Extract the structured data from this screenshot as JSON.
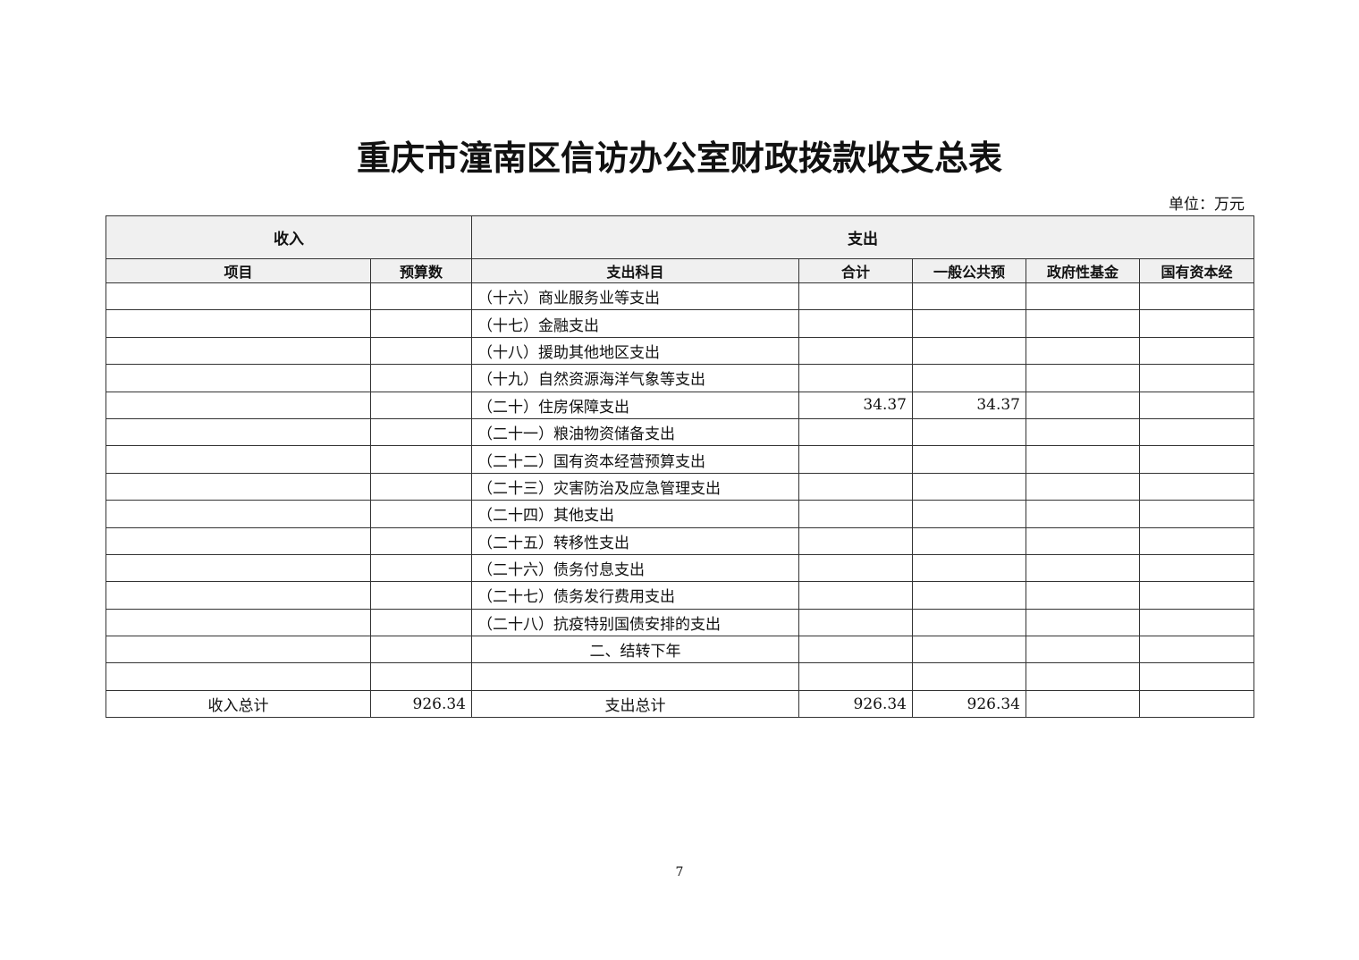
{
  "title": "重庆市潼南区信访办公室财政拨款收支总表",
  "unit": "单位：万元",
  "header": {
    "income": "收入",
    "expense": "支出",
    "columns": [
      "项目",
      "预算数",
      "支出科目",
      "合计",
      "一般公共预",
      "政府性基金",
      "国有资本经"
    ]
  },
  "rows": [
    [
      "",
      "",
      "（十六）商业服务业等支出",
      "",
      "",
      "",
      ""
    ],
    [
      "",
      "",
      "（十七）金融支出",
      "",
      "",
      "",
      ""
    ],
    [
      "",
      "",
      "（十八）援助其他地区支出",
      "",
      "",
      "",
      ""
    ],
    [
      "",
      "",
      "（十九）自然资源海洋气象等支出",
      "",
      "",
      "",
      ""
    ],
    [
      "",
      "",
      "（二十）住房保障支出",
      "34.37",
      "34.37",
      "",
      ""
    ],
    [
      "",
      "",
      "（二十一）粮油物资储备支出",
      "",
      "",
      "",
      ""
    ],
    [
      "",
      "",
      "（二十二）国有资本经营预算支出",
      "",
      "",
      "",
      ""
    ],
    [
      "",
      "",
      "（二十三）灾害防治及应急管理支出",
      "",
      "",
      "",
      ""
    ],
    [
      "",
      "",
      "（二十四）其他支出",
      "",
      "",
      "",
      ""
    ],
    [
      "",
      "",
      "（二十五）转移性支出",
      "",
      "",
      "",
      ""
    ],
    [
      "",
      "",
      "（二十六）债务付息支出",
      "",
      "",
      "",
      ""
    ],
    [
      "",
      "",
      "（二十七）债务发行费用支出",
      "",
      "",
      "",
      ""
    ],
    [
      "",
      "",
      "（二十八）抗疫特别国债安排的支出",
      "",
      "",
      "",
      ""
    ],
    [
      "",
      "",
      "二、结转下年",
      "",
      "",
      "",
      ""
    ],
    [
      "",
      "",
      "",
      "",
      "",
      "",
      ""
    ],
    [
      "收入总计",
      "926.34",
      "支出总计",
      "926.34",
      "926.34",
      "",
      ""
    ]
  ],
  "page_number": "7"
}
